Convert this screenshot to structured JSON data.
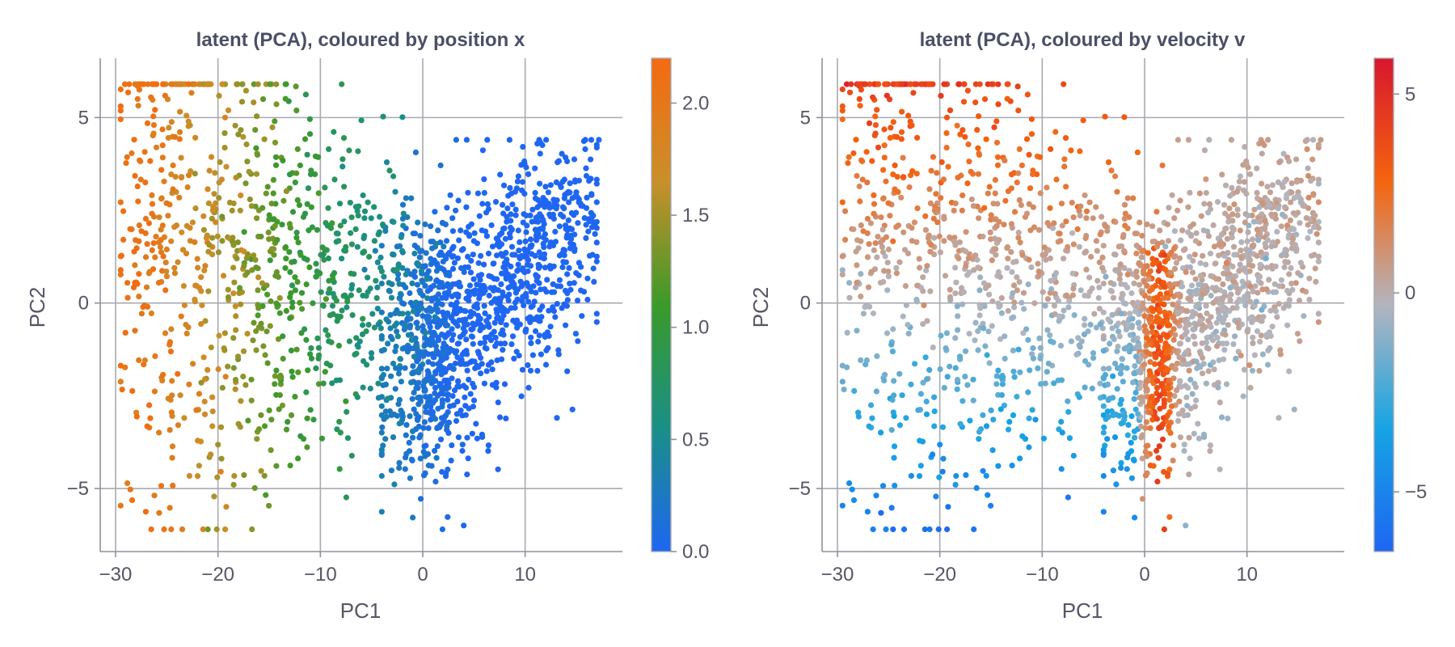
{
  "colors": {
    "position_scale": [
      "#1f66f2",
      "#1a8f86",
      "#3a9a2a",
      "#c98f2a",
      "#f56a10"
    ],
    "velocity_scale": [
      "#1f66f2",
      "#16a4e3",
      "#b3b5bf",
      "#f5640e",
      "#d8162e"
    ],
    "axis_text": "#555566",
    "grid": "#a9aab0"
  },
  "chart_data": [
    {
      "type": "scatter",
      "title": "latent (PCA), coloured by position x",
      "xlabel": "PC1",
      "ylabel": "PC2",
      "xlim": [
        -31.5,
        19.5
      ],
      "ylim": [
        -6.7,
        6.6
      ],
      "xticks": [
        -30,
        -20,
        -10,
        0,
        10
      ],
      "xtick_labels": [
        "−30",
        "−20",
        "−10",
        "0",
        "10"
      ],
      "yticks": [
        -5,
        0,
        5
      ],
      "ytick_labels": [
        "−5",
        "0",
        "5"
      ],
      "grid": true,
      "color_variable": "position x",
      "colorbar": {
        "min": 0.0,
        "max": 2.2,
        "ticks": [
          0.0,
          0.5,
          1.0,
          1.5,
          2.0
        ],
        "tick_labels": [
          "0.0",
          "0.5",
          "1.0",
          "1.5",
          "2.0"
        ]
      },
      "points_note": "approximately 2000 points; sampled representative cloud",
      "seed": 7
    },
    {
      "type": "scatter",
      "title": "latent (PCA), coloured by velocity v",
      "xlabel": "PC1",
      "ylabel": "PC2",
      "xlim": [
        -31.5,
        19.5
      ],
      "ylim": [
        -6.7,
        6.6
      ],
      "xticks": [
        -30,
        -20,
        -10,
        0,
        10
      ],
      "xtick_labels": [
        "−30",
        "−20",
        "−10",
        "0",
        "10"
      ],
      "yticks": [
        -5,
        0,
        5
      ],
      "ytick_labels": [
        "−5",
        "0",
        "5"
      ],
      "grid": true,
      "color_variable": "velocity v",
      "colorbar": {
        "min": -6.5,
        "max": 5.9,
        "ticks": [
          -5,
          0,
          5
        ],
        "tick_labels": [
          "−5",
          "0",
          "5"
        ]
      },
      "points_note": "same latent points as left panel, coloured by velocity",
      "seed": 7
    }
  ]
}
